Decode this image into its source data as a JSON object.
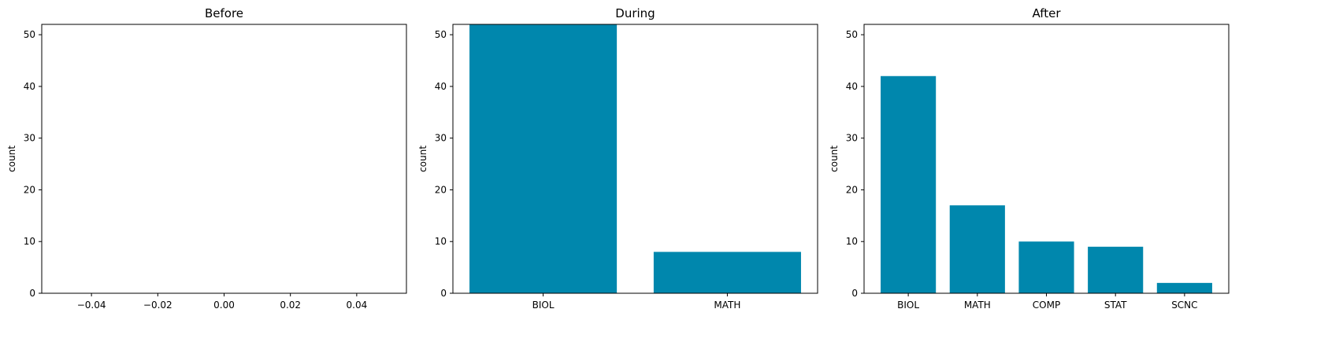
{
  "bar_color": "#0087ad",
  "chart_data": [
    {
      "type": "bar",
      "title": "Before",
      "xlabel": "",
      "ylabel": "count",
      "categories": [],
      "values": [],
      "ylim": [
        0,
        52
      ],
      "yticks": [
        0,
        10,
        20,
        30,
        40,
        50
      ],
      "xlim": [
        -0.055,
        0.055
      ],
      "xticks": [
        -0.04,
        -0.02,
        0.0,
        0.02,
        0.04
      ],
      "xtick_labels": [
        "−0.04",
        "−0.02",
        "0.00",
        "0.02",
        "0.04"
      ]
    },
    {
      "type": "bar",
      "title": "During",
      "xlabel": "",
      "ylabel": "count",
      "categories": [
        "BIOL",
        "MATH"
      ],
      "values": [
        52,
        8
      ],
      "ylim": [
        0,
        52
      ],
      "yticks": [
        0,
        10,
        20,
        30,
        40,
        50
      ]
    },
    {
      "type": "bar",
      "title": "After",
      "xlabel": "",
      "ylabel": "count",
      "categories": [
        "BIOL",
        "MATH",
        "COMP",
        "STAT",
        "SCNC"
      ],
      "values": [
        42,
        17,
        10,
        9,
        2
      ],
      "ylim": [
        0,
        52
      ],
      "yticks": [
        0,
        10,
        20,
        30,
        40,
        50
      ]
    }
  ]
}
